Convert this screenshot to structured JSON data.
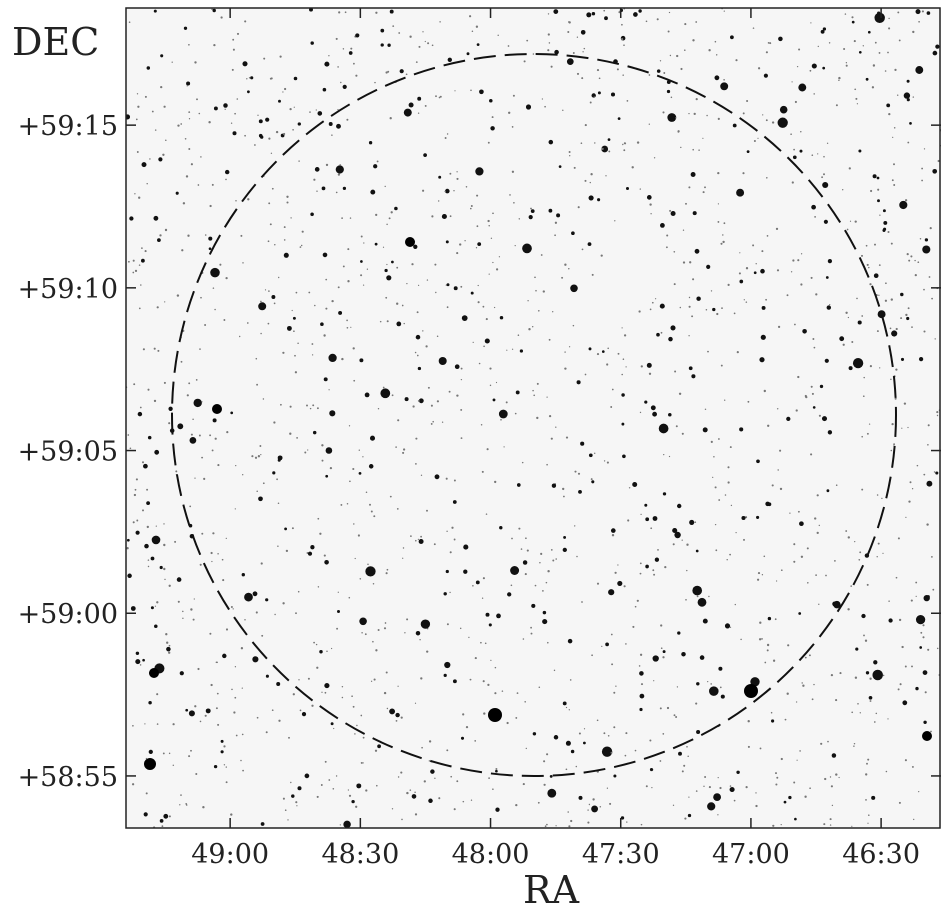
{
  "chart_data": {
    "type": "sky-image",
    "xlabel": "RA",
    "ylabel": "DEC",
    "xlim": [
      49.4,
      46.27
    ],
    "xticks": [
      {
        "value": 49.0,
        "label": "49:00"
      },
      {
        "value": 48.5,
        "label": "48:30"
      },
      {
        "value": 48.0,
        "label": "48:00"
      },
      {
        "value": 47.5,
        "label": "47:30"
      },
      {
        "value": 47.0,
        "label": "47:00"
      },
      {
        "value": 46.5,
        "label": "46:30"
      }
    ],
    "ylim": [
      3533.4,
      3558.6
    ],
    "yticks": [
      {
        "value": 3555,
        "label": "+59:15"
      },
      {
        "value": 3550,
        "label": "+59:10"
      },
      {
        "value": 3545,
        "label": "+59:05"
      },
      {
        "value": 3540,
        "label": "+59:00"
      },
      {
        "value": 3535,
        "label": "+58:55"
      }
    ]
  }
}
